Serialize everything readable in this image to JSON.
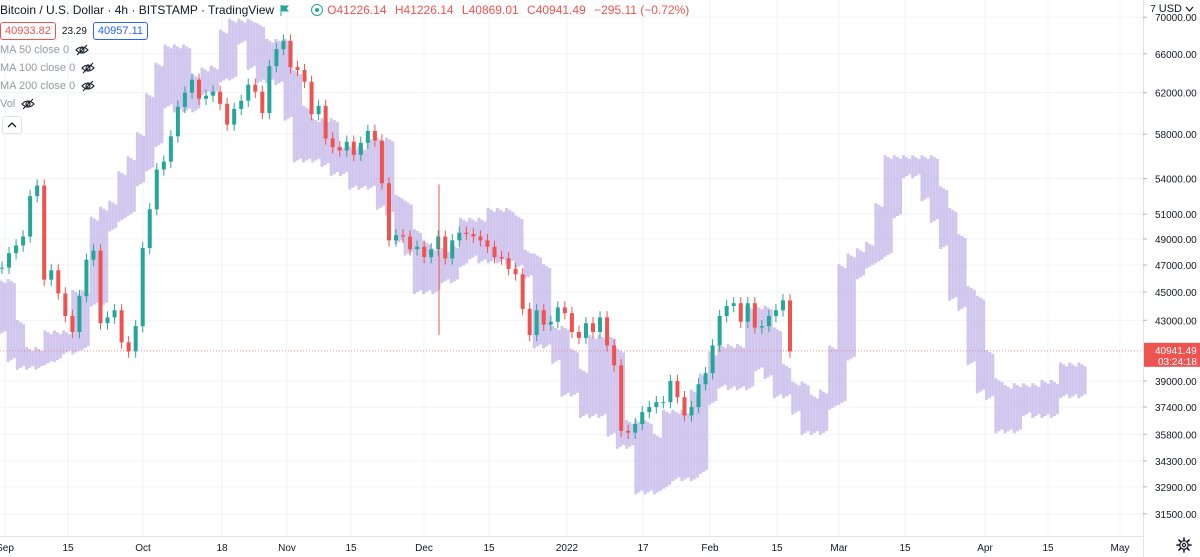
{
  "header": {
    "title": "Bitcoin / U.S. Dollar · 4h · BITSTAMP · TradingView",
    "ohlc": [
      {
        "k": "O",
        "v": "41226.14"
      },
      {
        "k": "H",
        "v": "41226.14"
      },
      {
        "k": "L",
        "v": "40869.01"
      },
      {
        "k": "C",
        "v": "40941.49"
      },
      {
        "k": "",
        "v": "−295.11 (−0.72%)"
      }
    ],
    "sell_price": "40933.82",
    "spread": "23.29",
    "buy_price": "40957.11",
    "currency": "USD"
  },
  "indicators": [
    {
      "label": "MA 50 close 0"
    },
    {
      "label": "MA 100 close 0"
    },
    {
      "label": "MA 200 close 0"
    },
    {
      "label": "Vol"
    }
  ],
  "price_scale": {
    "labels": [
      "70000.00",
      "66000.00",
      "62000.00",
      "58000.00",
      "54000.00",
      "51000.00",
      "49000.00",
      "47000.00",
      "45000.00",
      "43000.00",
      "39000.00",
      "37400.00",
      "35800.00",
      "34300.00",
      "32900.00",
      "31500.00"
    ],
    "last_price": "40941.49",
    "countdown": "03:24:18",
    "last_price_color": "#ef5350"
  },
  "chart_data": {
    "type": "candlestick",
    "title": "Bitcoin / U.S. Dollar",
    "x_tick_labels": [
      "Sep",
      "15",
      "Oct",
      "18",
      "Nov",
      "15",
      "Dec",
      "15",
      "2022",
      "17",
      "Feb",
      "15",
      "Mar",
      "15",
      "Apr",
      "15",
      "May"
    ],
    "y_scale": "log",
    "ylim": [
      30400,
      71500
    ],
    "colors": {
      "up": "#26a69a",
      "down": "#ef5350",
      "comparison": "#c5b8ea"
    },
    "main_series_close": [
      46800,
      47900,
      48500,
      49200,
      52500,
      53400,
      45900,
      46600,
      44900,
      43300,
      42200,
      44700,
      47400,
      48100,
      42800,
      43200,
      43700,
      41500,
      40900,
      42600,
      48300,
      51400,
      54800,
      55500,
      57800,
      60600,
      62000,
      63300,
      61400,
      61700,
      62100,
      60900,
      58900,
      60400,
      61200,
      62800,
      62100,
      60000,
      64700,
      66500,
      67400,
      64600,
      64300,
      63100,
      59900,
      60700,
      57600,
      56800,
      56500,
      57300,
      56100,
      57200,
      58300,
      57400,
      53600,
      48900,
      49300,
      49200,
      48200,
      48400,
      47600,
      48200,
      49200,
      47500,
      48900,
      49500,
      49400,
      49200,
      48900,
      48400,
      47600,
      47500,
      46700,
      46300,
      43800,
      42000,
      43700,
      42700,
      42900,
      43900,
      43500,
      42200,
      41800,
      42800,
      42200,
      43200,
      41300,
      40000,
      36000,
      35900,
      36400,
      37100,
      37400,
      37700,
      37700,
      39000,
      38000,
      36900,
      37400,
      38800,
      39500,
      41300,
      43300,
      44000,
      44200,
      42900,
      44200,
      42500,
      42600,
      43300,
      43700,
      44400,
      40900
    ],
    "comparison_series_close": [
      45400,
      42500,
      40700,
      40200,
      40500,
      40700,
      41800,
      41200,
      41500,
      44600,
      44500,
      50200,
      51000,
      51500,
      54000,
      55300,
      57500,
      61200,
      64300,
      66200,
      60800,
      63100,
      62500,
      63800,
      64000,
      67800,
      69000,
      68500,
      65100,
      63700,
      66800,
      63500,
      60000,
      56100,
      57500,
      58800,
      55700,
      54900,
      56200,
      53700,
      54200,
      57000,
      52000,
      51500,
      49200,
      48300,
      45400,
      47700,
      46200,
      47400,
      48000,
      50100,
      49800,
      47700,
      50900,
      50300,
      47600,
      47300,
      46500,
      41600,
      42100,
      40600,
      38500,
      39300,
      37200,
      41500,
      40600,
      36100,
      35400,
      36200,
      32900,
      33200,
      35400,
      36800,
      33600,
      34000,
      38000,
      39000,
      40400,
      40900,
      38900,
      40100,
      43500,
      42000,
      39600,
      38400,
      38500,
      37400,
      36200,
      37700,
      38000,
      40800,
      46500,
      47300,
      47700,
      48200,
      51300,
      55400,
      54700,
      55200,
      55400,
      52700,
      50900,
      48800,
      44900,
      44200,
      40500,
      38700,
      38300,
      36300,
      37300,
      38400,
      38100,
      37200,
      38600,
      38400,
      39700,
      38400
    ]
  }
}
